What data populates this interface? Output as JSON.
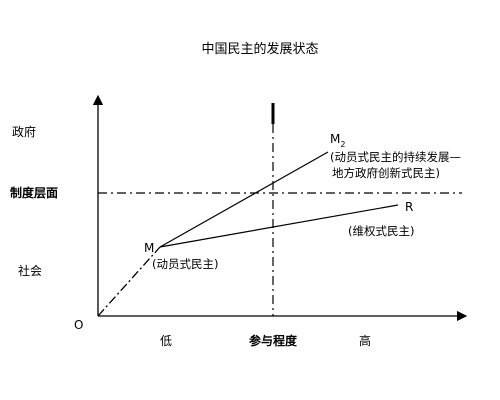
{
  "title": "中国民主的发展状态",
  "axes": {
    "origin": "O",
    "y_top": "政府",
    "y_mid": "制度层面",
    "y_bottom": "社会",
    "x_low": "低",
    "x_mid": "参与程度",
    "x_high": "高"
  },
  "points": {
    "m_label": "M",
    "m_desc": "(动员式民主)",
    "m2_label": "M",
    "m2_sub": "2",
    "m2_desc_line1": "(动员式民主的持续发展—",
    "m2_desc_line2": "地方政府创新式民主)",
    "r_label": "R",
    "r_desc": "(维权式民主)"
  },
  "colors": {
    "ink": "#000000",
    "background": "#ffffff"
  }
}
